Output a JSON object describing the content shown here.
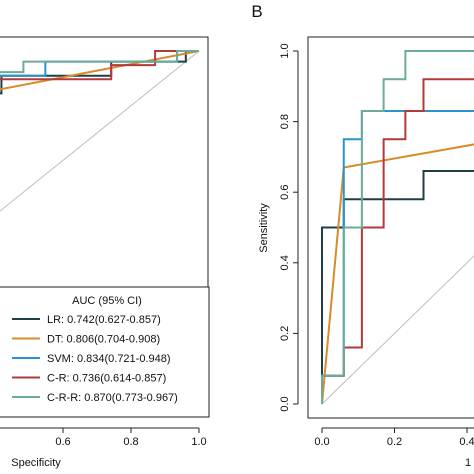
{
  "chart_data": [
    {
      "panel_label": "",
      "type": "line",
      "xlabel": "Specificity",
      "ylabel": "",
      "xlim": [
        1.0,
        0.0
      ],
      "ylim": [
        0.0,
        1.0
      ],
      "x_ticks": [
        "0.6",
        "0.8",
        "1.0"
      ],
      "x_tick_values": [
        0.6,
        0.8,
        1.0
      ],
      "legend_placement": "bottom-right",
      "legend_title": "AUC (95% CI)",
      "series": [
        {
          "name": "LR",
          "label": "LR: 0.742(0.627-0.857)",
          "color": "#1f3f46",
          "points": [
            [
              0.0,
              1.0
            ],
            [
              0.03,
              1.0
            ],
            [
              0.03,
              0.97
            ],
            [
              0.2,
              0.97
            ],
            [
              0.2,
              0.93
            ],
            [
              0.45,
              0.93
            ],
            [
              0.45,
              0.88
            ],
            [
              0.58,
              0.88
            ],
            [
              0.58,
              0.84
            ],
            [
              0.7,
              0.84
            ],
            [
              0.7,
              0.79
            ],
            [
              0.8,
              0.79
            ],
            [
              0.8,
              0.75
            ],
            [
              1.0,
              0.75
            ]
          ]
        },
        {
          "name": "DT",
          "label": "DT: 0.806(0.704-0.908)",
          "color": "#d98a2b",
          "points": [
            [
              0.0,
              1.0
            ],
            [
              1.0,
              0.76
            ]
          ]
        },
        {
          "name": "SVM",
          "label": "SVM: 0.834(0.721-0.948)",
          "color": "#2a93c8",
          "points": [
            [
              0.0,
              1.0
            ],
            [
              0.05,
              1.0
            ],
            [
              0.05,
              0.97
            ],
            [
              0.35,
              0.97
            ],
            [
              0.35,
              0.93
            ],
            [
              0.55,
              0.93
            ],
            [
              0.55,
              0.89
            ],
            [
              0.6,
              0.89
            ],
            [
              0.6,
              0.81
            ],
            [
              0.75,
              0.81
            ],
            [
              0.75,
              0.78
            ],
            [
              0.85,
              0.78
            ],
            [
              0.85,
              0.72
            ],
            [
              1.0,
              0.72
            ]
          ]
        },
        {
          "name": "C-R",
          "label": "C-R: 0.736(0.614-0.857)",
          "color": "#b33a3a",
          "points": [
            [
              0.0,
              1.0
            ],
            [
              0.1,
              1.0
            ],
            [
              0.1,
              0.96
            ],
            [
              0.2,
              0.96
            ],
            [
              0.2,
              0.92
            ],
            [
              0.55,
              0.92
            ],
            [
              0.55,
              0.88
            ],
            [
              0.65,
              0.88
            ],
            [
              0.65,
              0.83
            ],
            [
              0.72,
              0.83
            ],
            [
              0.72,
              0.79
            ],
            [
              0.85,
              0.79
            ],
            [
              0.85,
              0.73
            ],
            [
              0.94,
              0.73
            ],
            [
              0.94,
              0.69
            ],
            [
              1.0,
              0.69
            ]
          ]
        },
        {
          "name": "C-R-R",
          "label": "C-R-R: 0.870(0.773-0.967)",
          "color": "#6aab9c",
          "points": [
            [
              0.0,
              1.0
            ],
            [
              0.05,
              1.0
            ],
            [
              0.05,
              0.97
            ],
            [
              0.4,
              0.97
            ],
            [
              0.4,
              0.94
            ],
            [
              0.72,
              0.94
            ],
            [
              0.72,
              0.9
            ],
            [
              1.0,
              0.9
            ]
          ]
        }
      ]
    },
    {
      "panel_label": "B",
      "type": "line",
      "xlabel": "1",
      "ylabel": "Sensitivity",
      "xlim": [
        0.0,
        0.5
      ],
      "ylim": [
        0.0,
        1.0
      ],
      "x_ticks": [
        "0.0",
        "0.2",
        "0.4"
      ],
      "x_tick_values": [
        0.0,
        0.2,
        0.4
      ],
      "y_ticks": [
        "0.0",
        "0.2",
        "0.4",
        "0.6",
        "0.8",
        "1.0"
      ],
      "y_tick_values": [
        0.0,
        0.2,
        0.4,
        0.6,
        0.8,
        1.0
      ],
      "series": [
        {
          "name": "LR",
          "color": "#1f3f46",
          "points": [
            [
              0.0,
              0.0
            ],
            [
              0.0,
              0.5
            ],
            [
              0.06,
              0.5
            ],
            [
              0.06,
              0.58
            ],
            [
              0.17,
              0.58
            ],
            [
              0.17,
              0.58
            ],
            [
              0.28,
              0.58
            ],
            [
              0.28,
              0.66
            ],
            [
              0.5,
              0.66
            ]
          ]
        },
        {
          "name": "DT",
          "color": "#d98a2b",
          "points": [
            [
              0.0,
              0.0
            ],
            [
              0.06,
              0.67
            ],
            [
              0.5,
              0.75
            ]
          ]
        },
        {
          "name": "SVM",
          "color": "#2a93c8",
          "points": [
            [
              0.0,
              0.0
            ],
            [
              0.0,
              0.08
            ],
            [
              0.06,
              0.08
            ],
            [
              0.06,
              0.75
            ],
            [
              0.11,
              0.75
            ],
            [
              0.11,
              0.83
            ],
            [
              0.5,
              0.83
            ]
          ]
        },
        {
          "name": "C-R",
          "color": "#b33a3a",
          "points": [
            [
              0.0,
              0.0
            ],
            [
              0.0,
              0.08
            ],
            [
              0.06,
              0.08
            ],
            [
              0.06,
              0.16
            ],
            [
              0.11,
              0.16
            ],
            [
              0.11,
              0.5
            ],
            [
              0.17,
              0.5
            ],
            [
              0.17,
              0.75
            ],
            [
              0.23,
              0.75
            ],
            [
              0.23,
              0.83
            ],
            [
              0.28,
              0.83
            ],
            [
              0.28,
              0.92
            ],
            [
              0.5,
              0.92
            ]
          ]
        },
        {
          "name": "C-R-R",
          "color": "#6aab9c",
          "points": [
            [
              0.0,
              0.0
            ],
            [
              0.0,
              0.08
            ],
            [
              0.06,
              0.08
            ],
            [
              0.06,
              0.5
            ],
            [
              0.11,
              0.5
            ],
            [
              0.11,
              0.58
            ],
            [
              0.11,
              0.58
            ],
            [
              0.11,
              0.83
            ],
            [
              0.17,
              0.83
            ],
            [
              0.17,
              0.92
            ],
            [
              0.23,
              0.92
            ],
            [
              0.23,
              1.0
            ],
            [
              0.5,
              1.0
            ]
          ]
        }
      ]
    }
  ]
}
